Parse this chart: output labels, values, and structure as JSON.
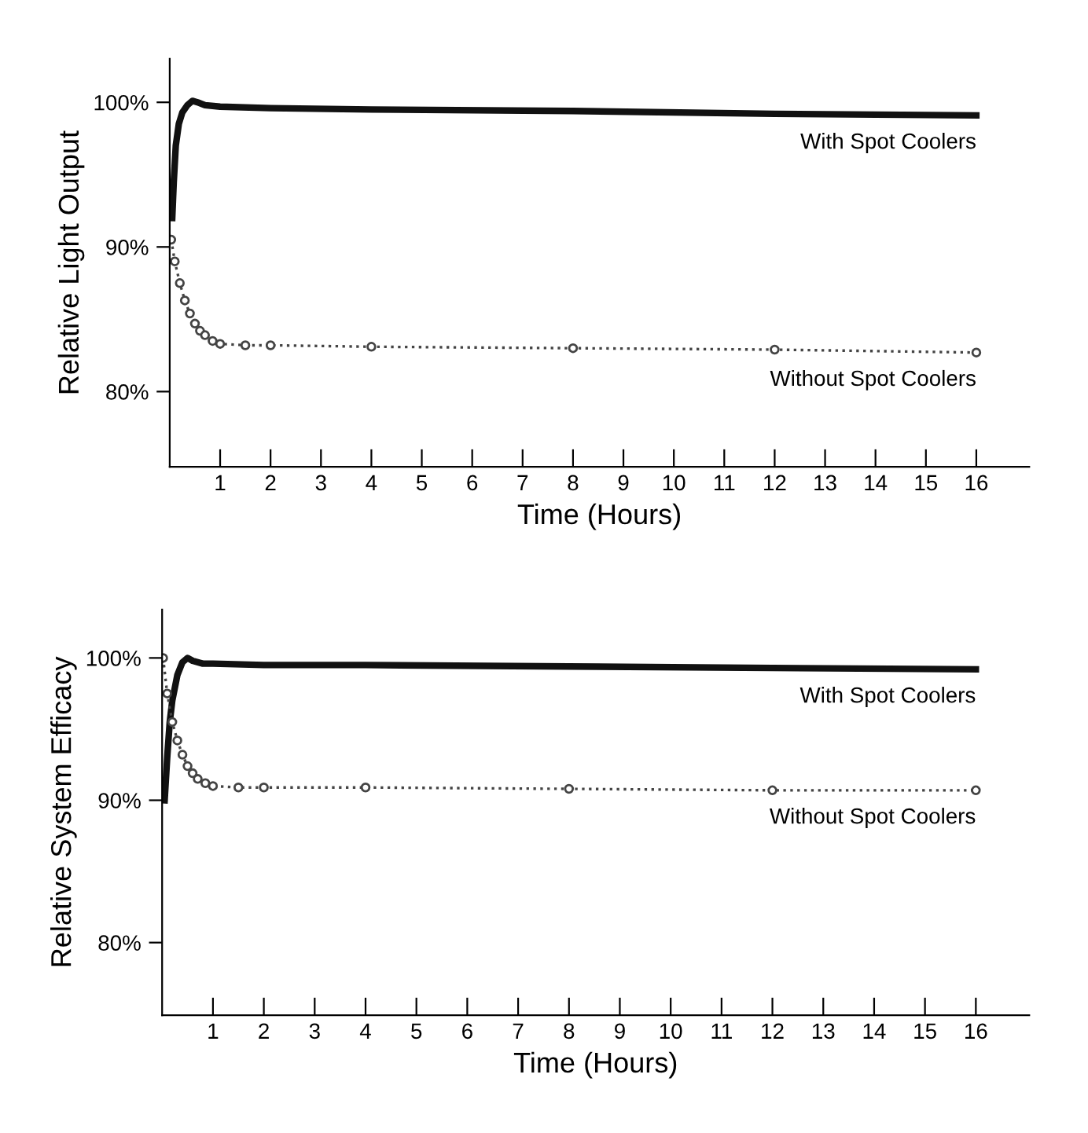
{
  "chart_data": [
    {
      "type": "line",
      "xlabel": "Time (Hours)",
      "ylabel": "Relative Light Output",
      "xlim": [
        0,
        17.05
      ],
      "ylim": [
        74.8,
        103
      ],
      "xticks": [
        1,
        2,
        3,
        4,
        5,
        6,
        7,
        8,
        9,
        10,
        11,
        12,
        13,
        14,
        15,
        16
      ],
      "yticks": [
        {
          "value": 80,
          "label": "80%"
        },
        {
          "value": 90,
          "label": "90%"
        },
        {
          "value": 100,
          "label": "100%"
        }
      ],
      "grid": false,
      "legend": false,
      "series": [
        {
          "name": "With Spot Coolers",
          "color": "#111111",
          "line_style": "solid",
          "marker": "none",
          "x": [
            0.05,
            0.08,
            0.12,
            0.18,
            0.25,
            0.35,
            0.45,
            0.55,
            0.7,
            1,
            2,
            4,
            8,
            12,
            16
          ],
          "values": [
            92,
            94.5,
            97,
            98.5,
            99.3,
            99.8,
            100.1,
            100,
            99.8,
            99.7,
            99.6,
            99.5,
            99.4,
            99.2,
            99.1
          ]
        },
        {
          "name": "Without Spot Coolers",
          "color": "#444444",
          "line_style": "dotted",
          "marker": "circle",
          "x": [
            0.03,
            0.1,
            0.2,
            0.3,
            0.4,
            0.5,
            0.6,
            0.7,
            0.85,
            1,
            1.5,
            2,
            4,
            8,
            12,
            16
          ],
          "values": [
            90.5,
            89,
            87.5,
            86.3,
            85.4,
            84.7,
            84.2,
            83.9,
            83.5,
            83.3,
            83.2,
            83.2,
            83.1,
            83.0,
            82.9,
            82.7
          ]
        }
      ]
    },
    {
      "type": "line",
      "xlabel": "Time (Hours)",
      "ylabel": "Relative System Efficacy",
      "xlim": [
        0,
        17.05
      ],
      "ylim": [
        74.9,
        103.4
      ],
      "xticks": [
        1,
        2,
        3,
        4,
        5,
        6,
        7,
        8,
        9,
        10,
        11,
        12,
        13,
        14,
        15,
        16
      ],
      "yticks": [
        {
          "value": 80,
          "label": "80%"
        },
        {
          "value": 90,
          "label": "90%"
        },
        {
          "value": 100,
          "label": "100%"
        }
      ],
      "grid": false,
      "legend": false,
      "series": [
        {
          "name": "With Spot Coolers",
          "color": "#111111",
          "line_style": "solid",
          "marker": "none",
          "x": [
            0.05,
            0.1,
            0.15,
            0.2,
            0.3,
            0.4,
            0.5,
            0.6,
            0.8,
            1,
            2,
            4,
            8,
            12,
            16
          ],
          "values": [
            90,
            93,
            95.5,
            97,
            98.8,
            99.7,
            100,
            99.8,
            99.6,
            99.6,
            99.5,
            99.5,
            99.4,
            99.3,
            99.2
          ]
        },
        {
          "name": "Without Spot Coolers",
          "color": "#444444",
          "line_style": "dotted",
          "marker": "circle",
          "x": [
            0.02,
            0.1,
            0.2,
            0.3,
            0.4,
            0.5,
            0.6,
            0.7,
            0.85,
            1,
            1.5,
            2,
            4,
            8,
            12,
            16
          ],
          "values": [
            100,
            97.5,
            95.5,
            94.2,
            93.2,
            92.4,
            91.9,
            91.5,
            91.2,
            91.0,
            90.9,
            90.9,
            90.9,
            90.8,
            90.7,
            90.7
          ]
        }
      ]
    }
  ]
}
